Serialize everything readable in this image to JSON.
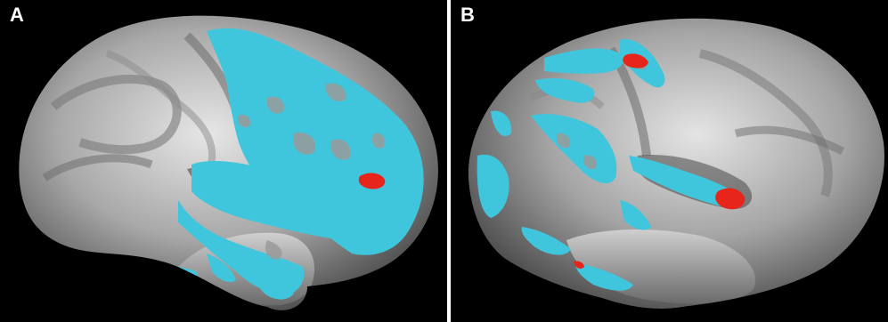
{
  "panels": [
    {
      "label": "A",
      "view": "left-hemisphere-lateral",
      "overlays": [
        "cyan-activation",
        "red-activation"
      ]
    },
    {
      "label": "B",
      "view": "right-hemisphere-lateral",
      "overlays": [
        "cyan-activation",
        "red-activation"
      ]
    }
  ],
  "colors": {
    "background": "#000000",
    "divider": "#ffffff",
    "cortex_light": "#d9d9d9",
    "cortex_dark": "#5a5a5a",
    "overlay_cyan": "#3fc6dd",
    "overlay_red": "#e8251b"
  }
}
